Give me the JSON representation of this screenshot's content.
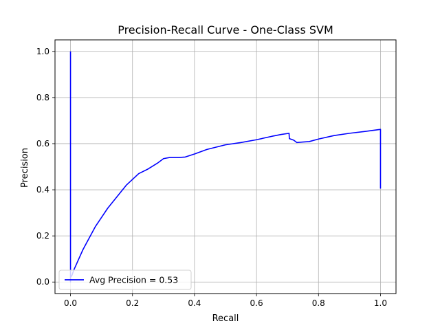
{
  "chart_data": {
    "type": "line",
    "title": "Precision-Recall Curve - One-Class SVM",
    "xlabel": "Recall",
    "ylabel": "Precision",
    "xlim": [
      -0.05,
      1.05
    ],
    "ylim": [
      -0.05,
      1.05
    ],
    "xticks": [
      0.0,
      0.2,
      0.4,
      0.6,
      0.8,
      1.0
    ],
    "yticks": [
      0.0,
      0.2,
      0.4,
      0.6,
      0.8,
      1.0
    ],
    "xtick_labels": [
      "0.0",
      "0.2",
      "0.4",
      "0.6",
      "0.8",
      "1.0"
    ],
    "ytick_labels": [
      "0.0",
      "0.2",
      "0.4",
      "0.6",
      "0.8",
      "1.0"
    ],
    "grid": true,
    "legend_position": "lower-left",
    "series": [
      {
        "name": "Avg Precision = 0.53",
        "color": "#0000ff",
        "x": [
          0.0,
          0.0,
          0.0,
          0.005,
          0.01,
          0.02,
          0.03,
          0.04,
          0.06,
          0.08,
          0.1,
          0.12,
          0.15,
          0.18,
          0.2,
          0.22,
          0.25,
          0.28,
          0.3,
          0.32,
          0.35,
          0.37,
          0.4,
          0.44,
          0.5,
          0.55,
          0.6,
          0.65,
          0.68,
          0.705,
          0.706,
          0.72,
          0.73,
          0.75,
          0.77,
          0.8,
          0.85,
          0.9,
          0.95,
          1.0,
          1.0
        ],
        "y": [
          1.0,
          0.0,
          0.02,
          0.03,
          0.05,
          0.08,
          0.11,
          0.14,
          0.19,
          0.24,
          0.28,
          0.32,
          0.37,
          0.42,
          0.445,
          0.47,
          0.49,
          0.515,
          0.535,
          0.54,
          0.54,
          0.542,
          0.555,
          0.575,
          0.595,
          0.605,
          0.617,
          0.632,
          0.64,
          0.645,
          0.622,
          0.615,
          0.605,
          0.607,
          0.609,
          0.62,
          0.635,
          0.645,
          0.653,
          0.662,
          0.405
        ]
      }
    ]
  }
}
